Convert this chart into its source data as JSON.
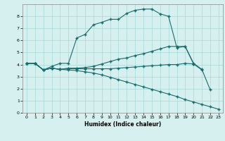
{
  "bg_color": "#d6f0f0",
  "grid_color": "#a8d8d8",
  "line_color": "#1a6b6b",
  "xlabel": "Humidex (Indice chaleur)",
  "xlim": [
    -0.5,
    23.5
  ],
  "ylim": [
    0,
    9
  ],
  "xticks": [
    0,
    1,
    2,
    3,
    4,
    5,
    6,
    7,
    8,
    9,
    10,
    11,
    12,
    13,
    14,
    15,
    16,
    17,
    18,
    19,
    20,
    21,
    22,
    23
  ],
  "yticks": [
    0,
    1,
    2,
    3,
    4,
    5,
    6,
    7,
    8
  ],
  "line1_x": [
    0,
    1,
    2,
    3,
    4,
    5,
    6,
    7,
    8,
    9,
    10,
    11,
    12,
    13,
    14,
    15,
    16,
    17,
    18,
    19,
    20,
    21,
    22
  ],
  "line1_y": [
    4.1,
    4.1,
    3.55,
    3.85,
    4.1,
    4.1,
    6.2,
    6.5,
    7.3,
    7.5,
    7.75,
    7.75,
    8.25,
    8.5,
    8.6,
    8.6,
    8.2,
    8.0,
    5.4,
    5.5,
    4.1,
    3.6,
    1.9
  ],
  "line2_x": [
    0,
    1,
    2,
    3,
    4,
    5,
    6,
    7,
    8,
    9,
    10,
    11,
    12,
    13,
    14,
    15,
    16,
    17,
    18,
    19,
    20,
    21
  ],
  "line2_y": [
    4.1,
    4.1,
    3.55,
    3.7,
    3.6,
    3.7,
    3.7,
    3.75,
    3.85,
    4.05,
    4.25,
    4.45,
    4.55,
    4.75,
    4.9,
    5.1,
    5.3,
    5.5,
    5.5,
    5.5,
    4.05,
    3.55
  ],
  "line3_x": [
    0,
    1,
    2,
    3,
    4,
    5,
    6,
    7,
    8,
    9,
    10,
    11,
    12,
    13,
    14,
    15,
    16,
    17,
    18,
    19,
    20
  ],
  "line3_y": [
    4.1,
    4.1,
    3.55,
    3.7,
    3.6,
    3.65,
    3.65,
    3.65,
    3.65,
    3.65,
    3.65,
    3.7,
    3.75,
    3.8,
    3.85,
    3.9,
    3.95,
    4.0,
    4.0,
    4.1,
    4.05
  ],
  "line4_x": [
    0,
    1,
    2,
    3,
    4,
    5,
    6,
    7,
    8,
    9,
    10,
    11,
    12,
    13,
    14,
    15,
    16,
    17,
    18,
    19,
    20,
    21,
    22,
    23
  ],
  "line4_y": [
    4.1,
    4.1,
    3.55,
    3.7,
    3.6,
    3.55,
    3.5,
    3.4,
    3.3,
    3.15,
    2.95,
    2.75,
    2.55,
    2.35,
    2.15,
    1.95,
    1.75,
    1.55,
    1.35,
    1.1,
    0.9,
    0.7,
    0.5,
    0.3
  ]
}
